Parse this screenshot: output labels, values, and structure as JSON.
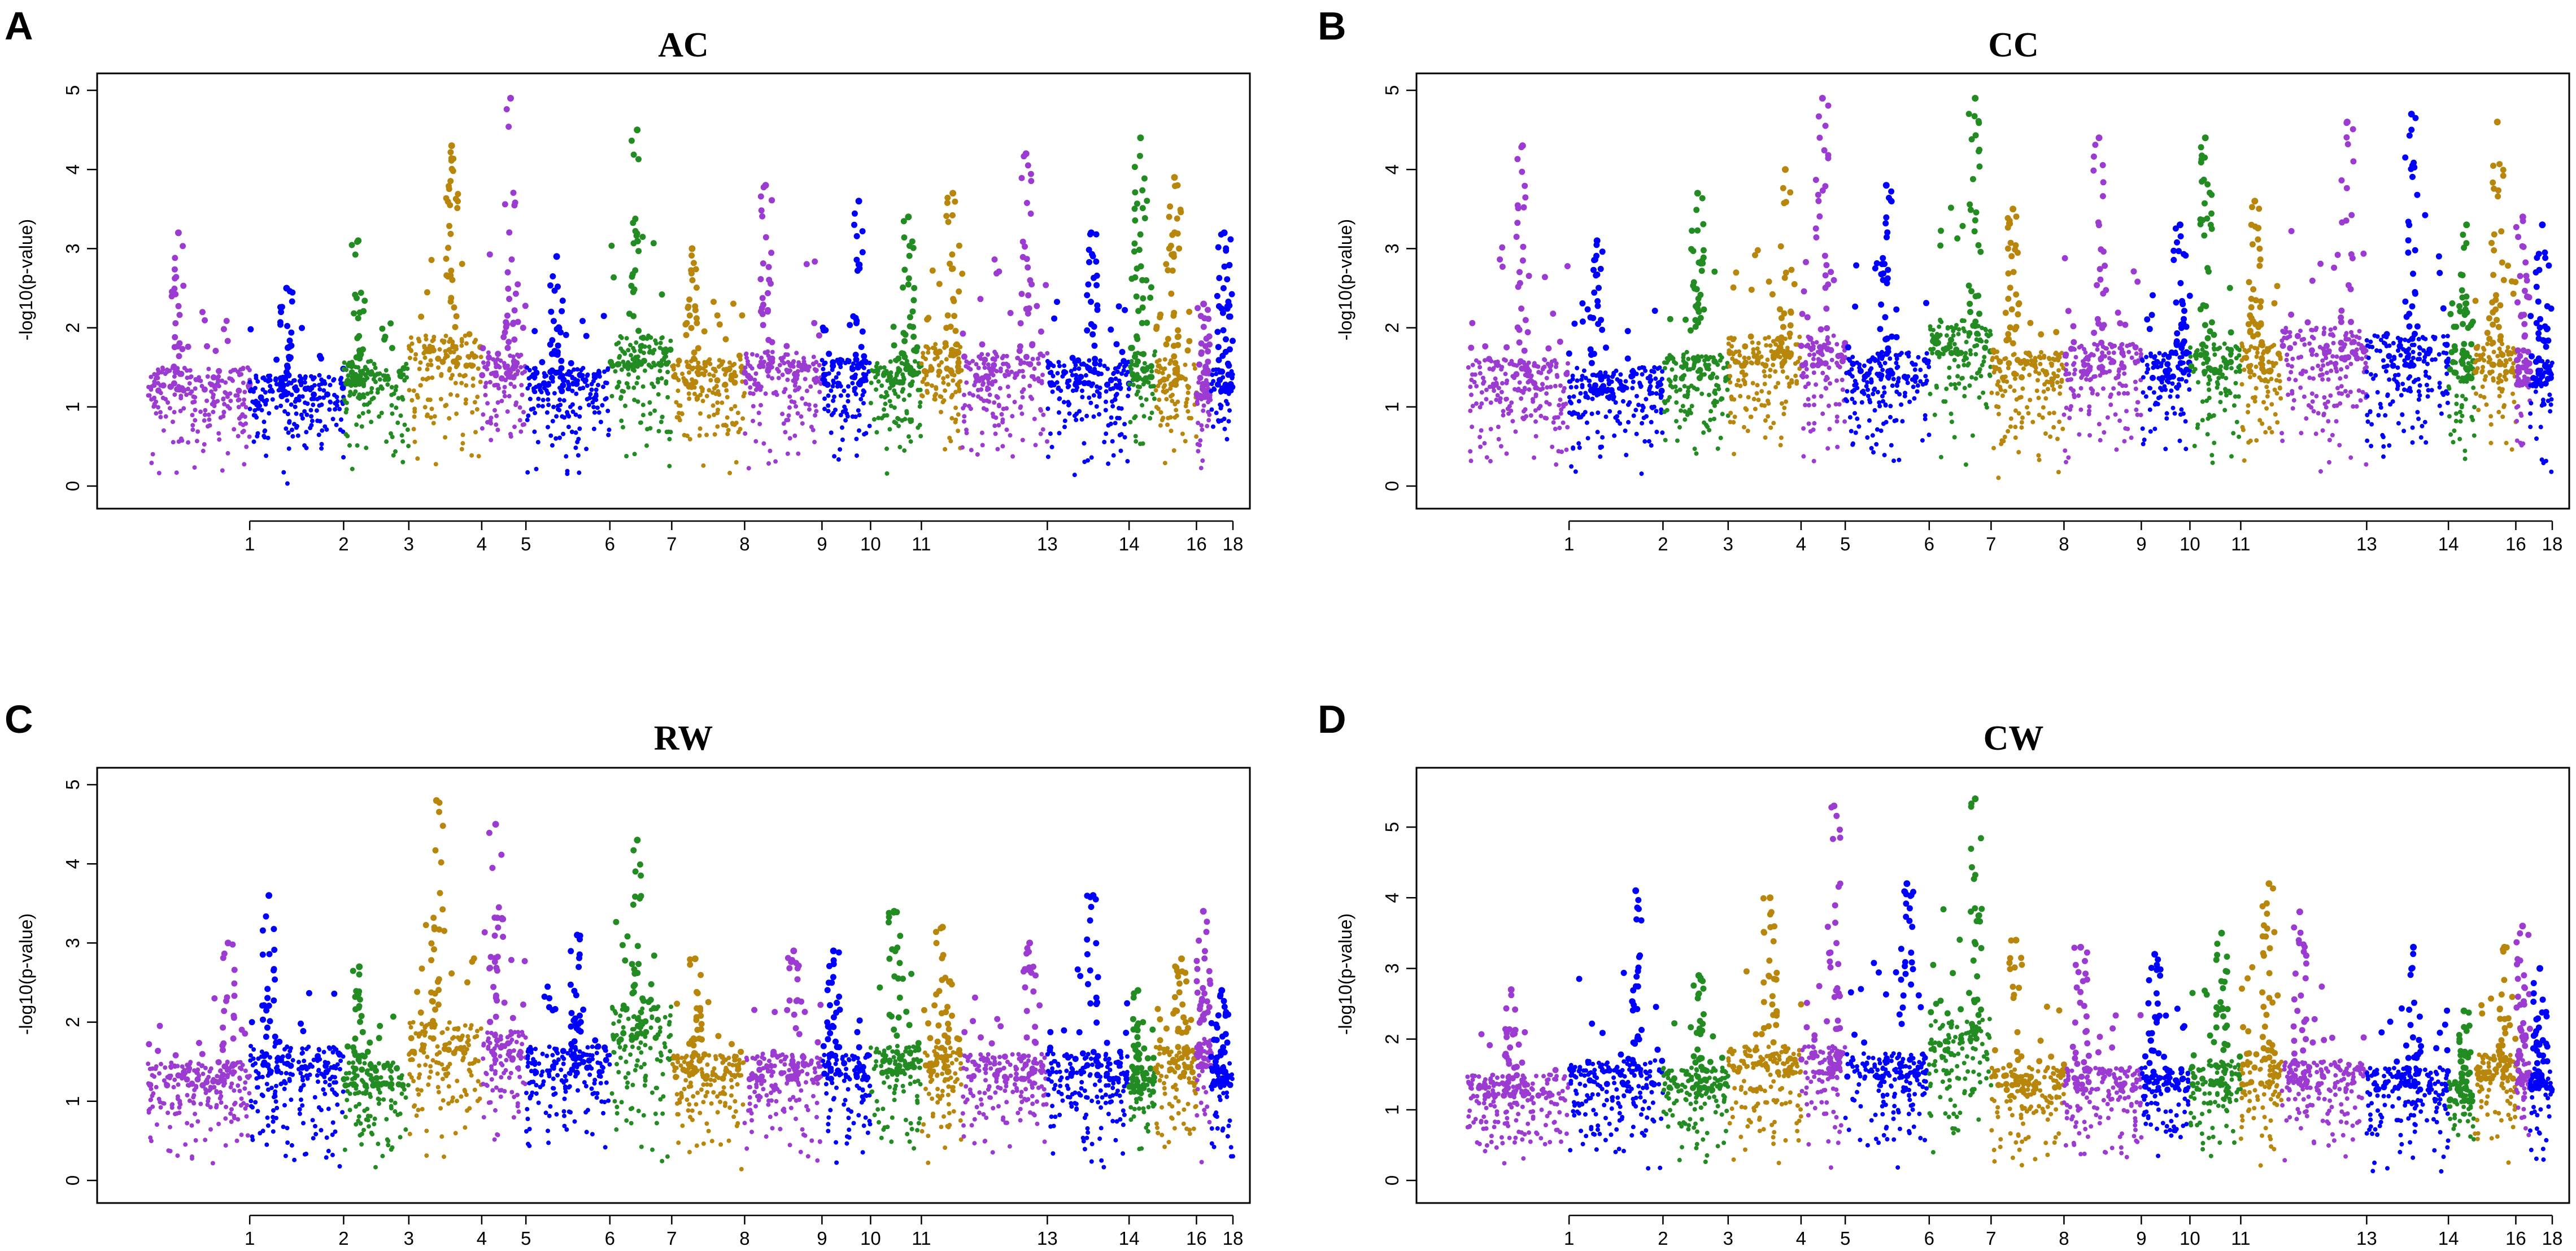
{
  "figure": {
    "colors": {
      "purple": "#9b3bd1",
      "blue": "#0000ff",
      "green": "#228b22",
      "gold": "#b8860b"
    },
    "chromosome_color_cycle": [
      "purple",
      "blue",
      "green",
      "gold"
    ]
  },
  "chart_data": [
    {
      "type": "scatter",
      "subtype": "manhattan",
      "panel_letter": "A",
      "title": "AC",
      "xlabel": "",
      "ylabel": "-log10(p-value)",
      "ylim": [
        0,
        5
      ],
      "yticks": [
        0,
        1,
        2,
        3,
        4,
        5
      ],
      "x_tick_labels": [
        "1",
        "2",
        "3",
        "4",
        "5",
        "6",
        "7",
        "8",
        "9",
        "10",
        "11",
        "13",
        "14",
        "16",
        "18"
      ],
      "chromosomes": [
        {
          "chr": "1",
          "base": 1.5,
          "peak": 3.2
        },
        {
          "chr": "2",
          "base": 1.4,
          "peak": 2.5
        },
        {
          "chr": "3",
          "base": 1.6,
          "peak": 3.1
        },
        {
          "chr": "4",
          "base": 1.9,
          "peak": 4.3
        },
        {
          "chr": "5",
          "base": 1.7,
          "peak": 4.9
        },
        {
          "chr": "6",
          "base": 1.5,
          "peak": 2.9
        },
        {
          "chr": "7",
          "base": 1.9,
          "peak": 4.5
        },
        {
          "chr": "8",
          "base": 1.6,
          "peak": 3.0
        },
        {
          "chr": "9",
          "base": 1.7,
          "peak": 3.8
        },
        {
          "chr": "10",
          "base": 1.6,
          "peak": 3.6
        },
        {
          "chr": "11",
          "base": 1.6,
          "peak": 3.4
        },
        {
          "chr": "12",
          "base": 1.8,
          "peak": 3.7
        },
        {
          "chr": "13",
          "base": 1.7,
          "peak": 4.2
        },
        {
          "chr": "14",
          "base": 1.6,
          "peak": 3.2
        },
        {
          "chr": "15",
          "base": 1.7,
          "peak": 4.4
        },
        {
          "chr": "16",
          "base": 1.6,
          "peak": 3.9
        },
        {
          "chr": "17",
          "base": 1.4,
          "peak": 2.3
        },
        {
          "chr": "18",
          "base": 1.5,
          "peak": 3.2
        }
      ]
    },
    {
      "type": "scatter",
      "subtype": "manhattan",
      "panel_letter": "B",
      "title": "CC",
      "xlabel": "",
      "ylabel": "-log10(p-value)",
      "ylim": [
        0,
        5
      ],
      "yticks": [
        0,
        1,
        2,
        3,
        4,
        5
      ],
      "x_tick_labels": [
        "1",
        "2",
        "3",
        "4",
        "5",
        "6",
        "7",
        "8",
        "9",
        "10",
        "11",
        "13",
        "14",
        "16",
        "18"
      ],
      "chromosomes": [
        {
          "chr": "1",
          "base": 1.6,
          "peak": 4.3
        },
        {
          "chr": "2",
          "base": 1.5,
          "peak": 3.1
        },
        {
          "chr": "3",
          "base": 1.7,
          "peak": 3.7
        },
        {
          "chr": "4",
          "base": 1.9,
          "peak": 4.0
        },
        {
          "chr": "5",
          "base": 1.9,
          "peak": 4.9
        },
        {
          "chr": "6",
          "base": 1.7,
          "peak": 3.8
        },
        {
          "chr": "7",
          "base": 2.1,
          "peak": 4.9
        },
        {
          "chr": "8",
          "base": 1.7,
          "peak": 3.5
        },
        {
          "chr": "9",
          "base": 1.8,
          "peak": 4.4
        },
        {
          "chr": "10",
          "base": 1.7,
          "peak": 3.3
        },
        {
          "chr": "11",
          "base": 1.8,
          "peak": 4.4
        },
        {
          "chr": "12",
          "base": 1.8,
          "peak": 3.6
        },
        {
          "chr": "13",
          "base": 2.0,
          "peak": 4.6
        },
        {
          "chr": "14",
          "base": 1.9,
          "peak": 4.7
        },
        {
          "chr": "15",
          "base": 1.7,
          "peak": 3.3
        },
        {
          "chr": "16",
          "base": 1.8,
          "peak": 4.6
        },
        {
          "chr": "17",
          "base": 1.6,
          "peak": 3.4
        },
        {
          "chr": "18",
          "base": 1.6,
          "peak": 3.3
        }
      ]
    },
    {
      "type": "scatter",
      "subtype": "manhattan",
      "panel_letter": "C",
      "title": "RW",
      "xlabel": "",
      "ylabel": "-log10(p-value)",
      "ylim": [
        0,
        5
      ],
      "yticks": [
        0,
        1,
        2,
        3,
        4,
        5
      ],
      "x_tick_labels": [
        "1",
        "2",
        "3",
        "4",
        "5",
        "6",
        "7",
        "8",
        "9",
        "10",
        "11",
        "13",
        "14",
        "16",
        "18"
      ],
      "chromosomes": [
        {
          "chr": "1",
          "base": 1.5,
          "peak": 3.0
        },
        {
          "chr": "2",
          "base": 1.7,
          "peak": 3.6
        },
        {
          "chr": "3",
          "base": 1.5,
          "peak": 2.7
        },
        {
          "chr": "4",
          "base": 2.0,
          "peak": 4.8
        },
        {
          "chr": "5",
          "base": 1.9,
          "peak": 4.5
        },
        {
          "chr": "6",
          "base": 1.7,
          "peak": 3.1
        },
        {
          "chr": "7",
          "base": 2.2,
          "peak": 4.3
        },
        {
          "chr": "8",
          "base": 1.6,
          "peak": 2.8
        },
        {
          "chr": "9",
          "base": 1.6,
          "peak": 2.9
        },
        {
          "chr": "10",
          "base": 1.6,
          "peak": 2.9
        },
        {
          "chr": "11",
          "base": 1.7,
          "peak": 3.4
        },
        {
          "chr": "12",
          "base": 1.7,
          "peak": 3.2
        },
        {
          "chr": "13",
          "base": 1.6,
          "peak": 3.0
        },
        {
          "chr": "14",
          "base": 1.6,
          "peak": 3.6
        },
        {
          "chr": "15",
          "base": 1.4,
          "peak": 2.4
        },
        {
          "chr": "16",
          "base": 1.7,
          "peak": 2.8
        },
        {
          "chr": "17",
          "base": 1.8,
          "peak": 3.4
        },
        {
          "chr": "18",
          "base": 1.5,
          "peak": 2.4
        }
      ]
    },
    {
      "type": "scatter",
      "subtype": "manhattan",
      "panel_letter": "D",
      "title": "CW",
      "xlabel": "",
      "ylabel": "-log10(p-value)",
      "ylim": [
        0,
        5.6
      ],
      "yticks": [
        0,
        1,
        2,
        3,
        4,
        5
      ],
      "x_tick_labels": [
        "1",
        "2",
        "3",
        "4",
        "5",
        "6",
        "7",
        "8",
        "9",
        "10",
        "11",
        "13",
        "14",
        "16",
        "18"
      ],
      "chromosomes": [
        {
          "chr": "1",
          "base": 1.5,
          "peak": 2.7
        },
        {
          "chr": "2",
          "base": 1.7,
          "peak": 4.1
        },
        {
          "chr": "3",
          "base": 1.6,
          "peak": 2.9
        },
        {
          "chr": "4",
          "base": 1.9,
          "peak": 4.0
        },
        {
          "chr": "5",
          "base": 1.9,
          "peak": 5.3
        },
        {
          "chr": "6",
          "base": 1.8,
          "peak": 4.2
        },
        {
          "chr": "7",
          "base": 2.3,
          "peak": 5.4
        },
        {
          "chr": "8",
          "base": 1.6,
          "peak": 3.4
        },
        {
          "chr": "9",
          "base": 1.6,
          "peak": 3.3
        },
        {
          "chr": "10",
          "base": 1.6,
          "peak": 3.2
        },
        {
          "chr": "11",
          "base": 1.7,
          "peak": 3.5
        },
        {
          "chr": "12",
          "base": 1.7,
          "peak": 4.2
        },
        {
          "chr": "13",
          "base": 1.7,
          "peak": 3.8
        },
        {
          "chr": "14",
          "base": 1.6,
          "peak": 3.3
        },
        {
          "chr": "15",
          "base": 1.4,
          "peak": 2.4
        },
        {
          "chr": "16",
          "base": 1.8,
          "peak": 3.3
        },
        {
          "chr": "17",
          "base": 1.7,
          "peak": 3.6
        },
        {
          "chr": "18",
          "base": 1.6,
          "peak": 3.0
        }
      ]
    }
  ]
}
